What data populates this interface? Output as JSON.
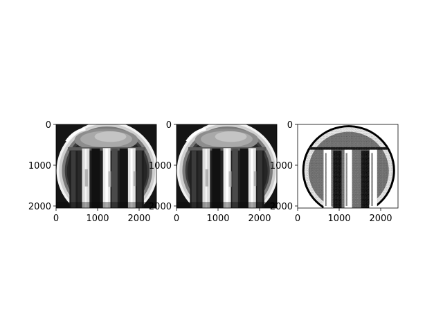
{
  "figure": {
    "panels": [
      {
        "kind": "grayscale-image",
        "x_ticks": [
          "0",
          "1000",
          "2000"
        ],
        "y_ticks": [
          "0",
          "1000",
          "2000"
        ]
      },
      {
        "kind": "grayscale-image",
        "x_ticks": [
          "0",
          "1000",
          "2000"
        ],
        "y_ticks": [
          "0",
          "1000",
          "2000"
        ]
      },
      {
        "kind": "binary-threshold-image",
        "x_ticks": [
          "0",
          "1000",
          "2000"
        ],
        "y_ticks": [
          "0",
          "1000",
          "2000"
        ]
      }
    ]
  }
}
